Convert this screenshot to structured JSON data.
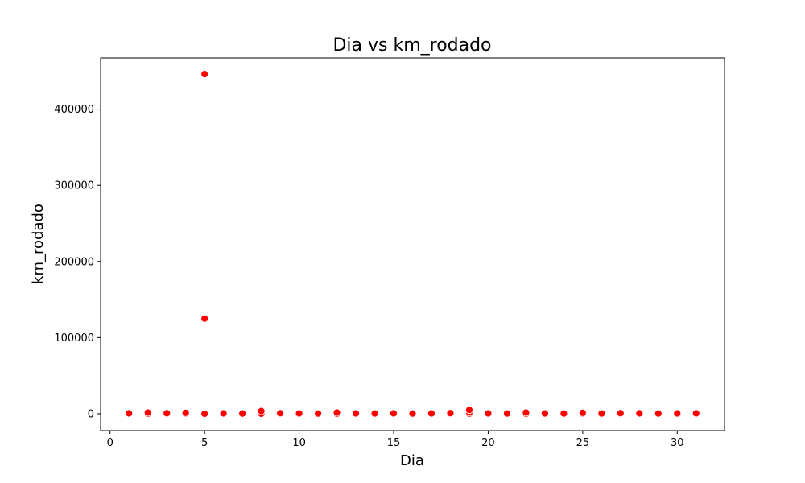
{
  "chart_data": {
    "type": "scatter",
    "title": "Dia vs km_rodado",
    "xlabel": "Dia",
    "ylabel": "km_rodado",
    "xlim": [
      -0.5,
      32.5
    ],
    "ylim": [
      -22250,
      467250
    ],
    "xticks": [
      0,
      5,
      10,
      15,
      20,
      25,
      30
    ],
    "xtick_labels": [
      "0",
      "5",
      "10",
      "15",
      "20",
      "25",
      "30"
    ],
    "yticks": [
      0,
      100000,
      200000,
      300000,
      400000
    ],
    "ytick_labels": [
      "0",
      "100000",
      "200000",
      "300000",
      "400000"
    ],
    "grid": false,
    "legend": "none",
    "marker_color": "#ff0000",
    "marker_edge_color": "#ffffff",
    "points": [
      {
        "x": 1,
        "y": 0
      },
      {
        "x": 1,
        "y": 500
      },
      {
        "x": 2,
        "y": 0
      },
      {
        "x": 2,
        "y": 1500
      },
      {
        "x": 3,
        "y": 0
      },
      {
        "x": 3,
        "y": 600
      },
      {
        "x": 4,
        "y": 0
      },
      {
        "x": 4,
        "y": 1200
      },
      {
        "x": 5,
        "y": 0
      },
      {
        "x": 5,
        "y": 125000
      },
      {
        "x": 5,
        "y": 446000
      },
      {
        "x": 6,
        "y": 0
      },
      {
        "x": 6,
        "y": 500
      },
      {
        "x": 7,
        "y": 0
      },
      {
        "x": 7,
        "y": 300
      },
      {
        "x": 8,
        "y": 0
      },
      {
        "x": 8,
        "y": 3500
      },
      {
        "x": 9,
        "y": 0
      },
      {
        "x": 9,
        "y": 700
      },
      {
        "x": 10,
        "y": 0
      },
      {
        "x": 10,
        "y": 400
      },
      {
        "x": 11,
        "y": 0
      },
      {
        "x": 11,
        "y": 300
      },
      {
        "x": 12,
        "y": 0
      },
      {
        "x": 12,
        "y": 1500
      },
      {
        "x": 13,
        "y": 0
      },
      {
        "x": 13,
        "y": 400
      },
      {
        "x": 14,
        "y": 0
      },
      {
        "x": 14,
        "y": 300
      },
      {
        "x": 15,
        "y": 0
      },
      {
        "x": 15,
        "y": 500
      },
      {
        "x": 16,
        "y": 0
      },
      {
        "x": 16,
        "y": 300
      },
      {
        "x": 17,
        "y": 0
      },
      {
        "x": 17,
        "y": 400
      },
      {
        "x": 18,
        "y": 0
      },
      {
        "x": 18,
        "y": 800
      },
      {
        "x": 19,
        "y": 0
      },
      {
        "x": 19,
        "y": 1500
      },
      {
        "x": 19,
        "y": 5000
      },
      {
        "x": 20,
        "y": 0
      },
      {
        "x": 20,
        "y": 400
      },
      {
        "x": 21,
        "y": 0
      },
      {
        "x": 21,
        "y": 300
      },
      {
        "x": 22,
        "y": 0
      },
      {
        "x": 22,
        "y": 1500
      },
      {
        "x": 23,
        "y": 0
      },
      {
        "x": 23,
        "y": 400
      },
      {
        "x": 24,
        "y": 0
      },
      {
        "x": 24,
        "y": 300
      },
      {
        "x": 25,
        "y": 0
      },
      {
        "x": 25,
        "y": 1200
      },
      {
        "x": 26,
        "y": 0
      },
      {
        "x": 26,
        "y": 300
      },
      {
        "x": 27,
        "y": 0
      },
      {
        "x": 27,
        "y": 700
      },
      {
        "x": 28,
        "y": 0
      },
      {
        "x": 28,
        "y": 500
      },
      {
        "x": 29,
        "y": 0
      },
      {
        "x": 29,
        "y": 300
      },
      {
        "x": 30,
        "y": 0
      },
      {
        "x": 30,
        "y": 400
      },
      {
        "x": 31,
        "y": 0
      },
      {
        "x": 31,
        "y": 500
      }
    ]
  }
}
